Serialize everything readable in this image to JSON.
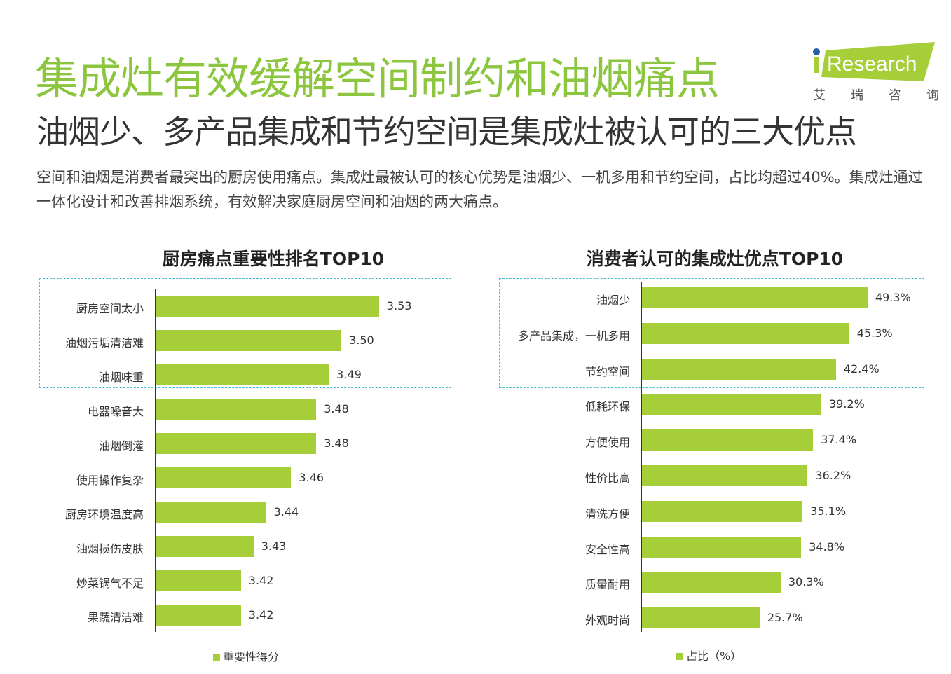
{
  "title": "集成灶有效缓解空间制约和油烟痛点",
  "subtitle": "油烟少、多产品集成和节约空间是集成灶被认可的三大优点",
  "description": "空间和油烟是消费者最突出的厨房使用痛点。集成灶最被认可的核心优势是油烟少、一机多用和节约空间，占比均超过40%。集成灶通过一体化设计和改善排烟系统，有效解决家庭厨房空间和油烟的两大痛点。",
  "logo": {
    "text": "iResearch",
    "cn": [
      "艾",
      "瑞",
      "咨",
      "询"
    ]
  },
  "colors": {
    "bar": "#a6ce39",
    "title": "#8cc63f",
    "highlight_box": "#4bb8d6"
  },
  "chart_data": [
    {
      "type": "bar",
      "orientation": "horizontal",
      "title": "厨房痛点重要性排名TOP10",
      "categories": [
        "厨房空间太小",
        "油烟污垢清洁难",
        "油烟味重",
        "电器噪音大",
        "油烟倒灌",
        "使用操作复杂",
        "厨房环境温度高",
        "油烟损伤皮肤",
        "炒菜锅气不足",
        "果蔬清洁难"
      ],
      "values": [
        3.53,
        3.5,
        3.49,
        3.48,
        3.48,
        3.46,
        3.44,
        3.43,
        3.42,
        3.42
      ],
      "labels": [
        "3.53",
        "3.50",
        "3.49",
        "3.48",
        "3.48",
        "3.46",
        "3.44",
        "3.43",
        "3.42",
        "3.42"
      ],
      "series": [
        {
          "name": "重要性得分"
        }
      ],
      "legend": "bottom",
      "highlighted_top": 3,
      "xlim": [
        3.35,
        3.56
      ]
    },
    {
      "type": "bar",
      "orientation": "horizontal",
      "title": "消费者认可的集成灶优点TOP10",
      "categories": [
        "油烟少",
        "多产品集成，一机多用",
        "节约空间",
        "低耗环保",
        "方便使用",
        "性价比高",
        "清洗方便",
        "安全性高",
        "质量耐用",
        "外观时尚"
      ],
      "values": [
        49.3,
        45.3,
        42.4,
        39.2,
        37.4,
        36.2,
        35.1,
        34.8,
        30.3,
        25.7
      ],
      "labels": [
        "49.3%",
        "45.3%",
        "42.4%",
        "39.2%",
        "37.4%",
        "36.2%",
        "35.1%",
        "34.8%",
        "30.3%",
        "25.7%"
      ],
      "series": [
        {
          "name": "占比（%）"
        }
      ],
      "legend": "bottom",
      "highlighted_top": 3,
      "xlim": [
        0,
        55
      ]
    }
  ]
}
